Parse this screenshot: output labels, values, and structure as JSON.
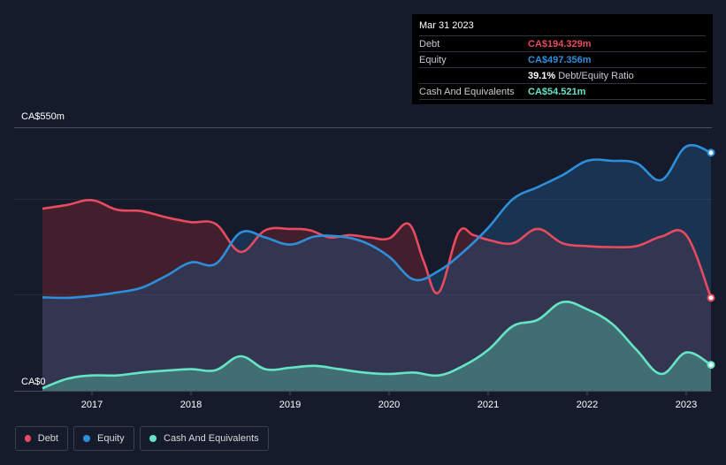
{
  "chart_data": {
    "type": "area",
    "y_max_label": "CA$550m",
    "y_min_label": "CA$0",
    "ylim": [
      0,
      550
    ],
    "xlim": [
      2016.5,
      2023.25
    ],
    "x_ticks": [
      "2017",
      "2018",
      "2019",
      "2020",
      "2021",
      "2022",
      "2023"
    ],
    "series": [
      {
        "name": "Debt",
        "color": "#e84a5f",
        "points": [
          [
            2016.5,
            380
          ],
          [
            2016.75,
            388
          ],
          [
            2017.0,
            398
          ],
          [
            2017.25,
            378
          ],
          [
            2017.5,
            375
          ],
          [
            2017.75,
            362
          ],
          [
            2018.0,
            352
          ],
          [
            2018.25,
            348
          ],
          [
            2018.5,
            290
          ],
          [
            2018.75,
            335
          ],
          [
            2019.0,
            338
          ],
          [
            2019.2,
            335
          ],
          [
            2019.4,
            320
          ],
          [
            2019.6,
            325
          ],
          [
            2019.8,
            320
          ],
          [
            2020.0,
            318
          ],
          [
            2020.2,
            348
          ],
          [
            2020.35,
            270
          ],
          [
            2020.5,
            205
          ],
          [
            2020.7,
            330
          ],
          [
            2020.85,
            325
          ],
          [
            2021.0,
            315
          ],
          [
            2021.25,
            308
          ],
          [
            2021.5,
            338
          ],
          [
            2021.75,
            308
          ],
          [
            2022.0,
            302
          ],
          [
            2022.25,
            300
          ],
          [
            2022.5,
            302
          ],
          [
            2022.75,
            322
          ],
          [
            2023.0,
            325
          ],
          [
            2023.25,
            194
          ]
        ]
      },
      {
        "name": "Equity",
        "color": "#2d8fdc",
        "points": [
          [
            2016.5,
            195
          ],
          [
            2016.75,
            194
          ],
          [
            2017.0,
            198
          ],
          [
            2017.25,
            205
          ],
          [
            2017.5,
            215
          ],
          [
            2017.75,
            240
          ],
          [
            2018.0,
            268
          ],
          [
            2018.25,
            265
          ],
          [
            2018.5,
            330
          ],
          [
            2018.75,
            320
          ],
          [
            2019.0,
            305
          ],
          [
            2019.25,
            322
          ],
          [
            2019.5,
            322
          ],
          [
            2019.75,
            310
          ],
          [
            2020.0,
            280
          ],
          [
            2020.25,
            232
          ],
          [
            2020.5,
            250
          ],
          [
            2020.75,
            290
          ],
          [
            2021.0,
            340
          ],
          [
            2021.25,
            400
          ],
          [
            2021.5,
            425
          ],
          [
            2021.75,
            450
          ],
          [
            2022.0,
            480
          ],
          [
            2022.25,
            480
          ],
          [
            2022.5,
            475
          ],
          [
            2022.75,
            440
          ],
          [
            2023.0,
            510
          ],
          [
            2023.25,
            497
          ]
        ]
      },
      {
        "name": "Cash And Equivalents",
        "color": "#65e4c6",
        "points": [
          [
            2016.5,
            5
          ],
          [
            2016.75,
            25
          ],
          [
            2017.0,
            32
          ],
          [
            2017.25,
            32
          ],
          [
            2017.5,
            38
          ],
          [
            2017.75,
            42
          ],
          [
            2018.0,
            45
          ],
          [
            2018.25,
            43
          ],
          [
            2018.5,
            72
          ],
          [
            2018.75,
            45
          ],
          [
            2019.0,
            48
          ],
          [
            2019.25,
            52
          ],
          [
            2019.5,
            45
          ],
          [
            2019.75,
            38
          ],
          [
            2020.0,
            35
          ],
          [
            2020.25,
            38
          ],
          [
            2020.5,
            32
          ],
          [
            2020.75,
            52
          ],
          [
            2021.0,
            85
          ],
          [
            2021.25,
            135
          ],
          [
            2021.5,
            148
          ],
          [
            2021.75,
            185
          ],
          [
            2022.0,
            170
          ],
          [
            2022.25,
            140
          ],
          [
            2022.5,
            85
          ],
          [
            2022.75,
            35
          ],
          [
            2023.0,
            80
          ],
          [
            2023.25,
            54
          ]
        ]
      }
    ]
  },
  "tooltip": {
    "date": "Mar 31 2023",
    "debt_label": "Debt",
    "debt_value": "CA$194.329m",
    "equity_label": "Equity",
    "equity_value": "CA$497.356m",
    "ratio_value": "39.1%",
    "ratio_label": "Debt/Equity Ratio",
    "cash_label": "Cash And Equivalents",
    "cash_value": "CA$54.521m"
  },
  "legend": {
    "debt": "Debt",
    "equity": "Equity",
    "cash": "Cash And Equivalents"
  },
  "colors": {
    "debt": "#e84a5f",
    "equity": "#2d8fdc",
    "cash": "#65e4c6"
  }
}
